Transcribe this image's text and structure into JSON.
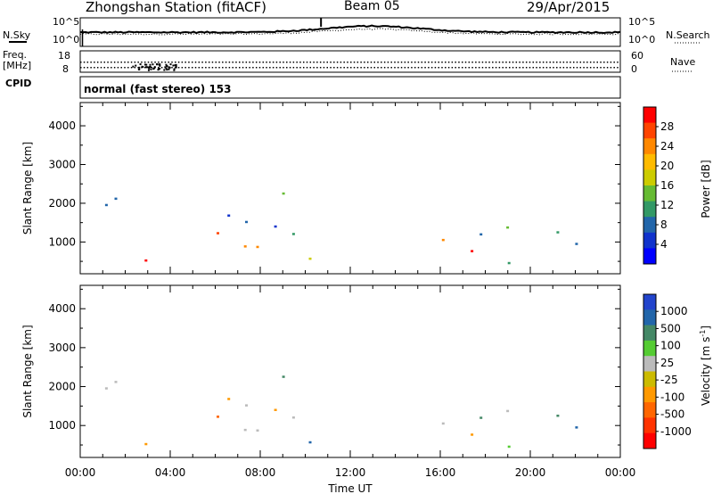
{
  "header": {
    "title": "Zhongshan Station (fitACF)",
    "beam": "Beam 05",
    "date": "29/Apr/2015"
  },
  "strip": {
    "nsky_label": "N.Sky",
    "nsearch_label": "N.Search",
    "freq_label_1": "Freq.",
    "freq_label_2": "[MHz]",
    "nave_label": "Nave",
    "cpid_label": "CPID",
    "cpid_text": "normal (fast stereo) 153",
    "noise_ticks_left": [
      "10^5",
      "10^0"
    ],
    "noise_ticks_right": [
      "10^5",
      "10^0"
    ],
    "freq_ticks": [
      "18",
      "8"
    ],
    "nave_ticks": [
      "60",
      "0"
    ]
  },
  "colorbars": {
    "power": {
      "label": "Power [dB]",
      "ticks": [
        "28",
        "24",
        "20",
        "16",
        "12",
        "8",
        "4"
      ],
      "colors": [
        "#ff0000",
        "#ff4400",
        "#ff8800",
        "#ffbb00",
        "#cccc00",
        "#66bb33",
        "#339966",
        "#2266aa",
        "#1133cc",
        "#0000ff"
      ]
    },
    "velocity": {
      "label": "Velocity [m s",
      "label_sup": "-1",
      "label_end": "]",
      "ticks": [
        "1000",
        "500",
        "100",
        "25",
        "-25",
        "-100",
        "-500",
        "-1000"
      ],
      "colors": [
        "#2244cc",
        "#2266aa",
        "#448866",
        "#55cc33",
        "#bbbbbb",
        "#ccbb00",
        "#ff9900",
        "#ff6600",
        "#ff3300",
        "#ff0000"
      ]
    }
  },
  "chart_data": [
    {
      "type": "heatmap",
      "name": "power",
      "ylabel": "Slant Range [km]",
      "xlabel": "",
      "ylim": [
        180,
        4600
      ],
      "xlim_hours": [
        0,
        24
      ],
      "y_ticks": [
        "1000",
        "2000",
        "3000",
        "4000"
      ],
      "x_ticks": [],
      "regions": [
        {
          "x": [
            0.0,
            10.5
          ],
          "y": [
            400,
            1400
          ],
          "kind": "power_high"
        },
        {
          "x": [
            0.2,
            3.0
          ],
          "y": [
            1500,
            2700
          ],
          "kind": "power_low"
        },
        {
          "x": [
            5.0,
            10.5
          ],
          "y": [
            1200,
            3000
          ],
          "kind": "power_low"
        },
        {
          "x": [
            14.8,
            20.5
          ],
          "y": [
            300,
            1900
          ],
          "kind": "power_mid"
        },
        {
          "x": [
            16.8,
            18.5
          ],
          "y": [
            500,
            1300
          ],
          "kind": "power_high"
        },
        {
          "x": [
            20.5,
            24.0
          ],
          "y": [
            500,
            1900
          ],
          "kind": "power_low"
        }
      ]
    },
    {
      "type": "heatmap",
      "name": "velocity",
      "ylabel": "Slant Range [km]",
      "xlabel": "Time UT",
      "ylim": [
        180,
        4600
      ],
      "xlim_hours": [
        0,
        24
      ],
      "y_ticks": [
        "1000",
        "2000",
        "3000",
        "4000"
      ],
      "x_ticks": [
        "00:00",
        "04:00",
        "08:00",
        "12:00",
        "16:00",
        "20:00",
        "00:00"
      ],
      "regions": [
        {
          "x": [
            0.0,
            10.5
          ],
          "y": [
            400,
            1400
          ],
          "kind": "vel_neg"
        },
        {
          "x": [
            0.2,
            3.0
          ],
          "y": [
            1500,
            2700
          ],
          "kind": "vel_zero"
        },
        {
          "x": [
            5.0,
            10.5
          ],
          "y": [
            1200,
            3000
          ],
          "kind": "vel_zero"
        },
        {
          "x": [
            14.8,
            20.5
          ],
          "y": [
            300,
            1900
          ],
          "kind": "vel_zero"
        },
        {
          "x": [
            16.8,
            18.5
          ],
          "y": [
            500,
            1300
          ],
          "kind": "vel_neg"
        },
        {
          "x": [
            20.5,
            24.0
          ],
          "y": [
            500,
            1900
          ],
          "kind": "vel_pos"
        }
      ]
    }
  ]
}
